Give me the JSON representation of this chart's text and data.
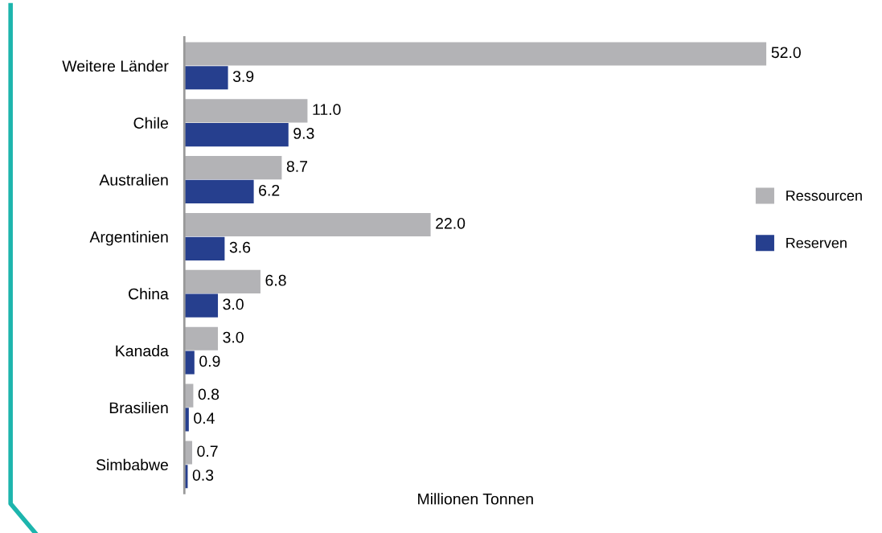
{
  "chart_data": {
    "type": "bar",
    "orientation": "horizontal",
    "xlabel": "Millionen Tonnen",
    "categories": [
      "Weitere Länder",
      "Chile",
      "Australien",
      "Argentinien",
      "China",
      "Kanada",
      "Brasilien",
      "Simbabwe"
    ],
    "series": [
      {
        "name": "Ressourcen",
        "color": "#b3b3b6",
        "values": [
          52.0,
          11.0,
          8.7,
          22.0,
          6.8,
          3.0,
          0.8,
          0.7
        ],
        "value_labels": [
          "52.0",
          "11.0",
          "8.7",
          "22.0",
          "6.8",
          "3.0",
          "0.8",
          "0.7"
        ]
      },
      {
        "name": "Reserven",
        "color": "#263f8e",
        "values": [
          3.9,
          9.3,
          6.2,
          3.6,
          3.0,
          0.9,
          0.4,
          0.3
        ],
        "value_labels": [
          "3.9",
          "9.3",
          "6.2",
          "3.6",
          "3.0",
          "0.9",
          "0.4",
          "0.3"
        ]
      }
    ],
    "legend": "right",
    "grid": false
  }
}
